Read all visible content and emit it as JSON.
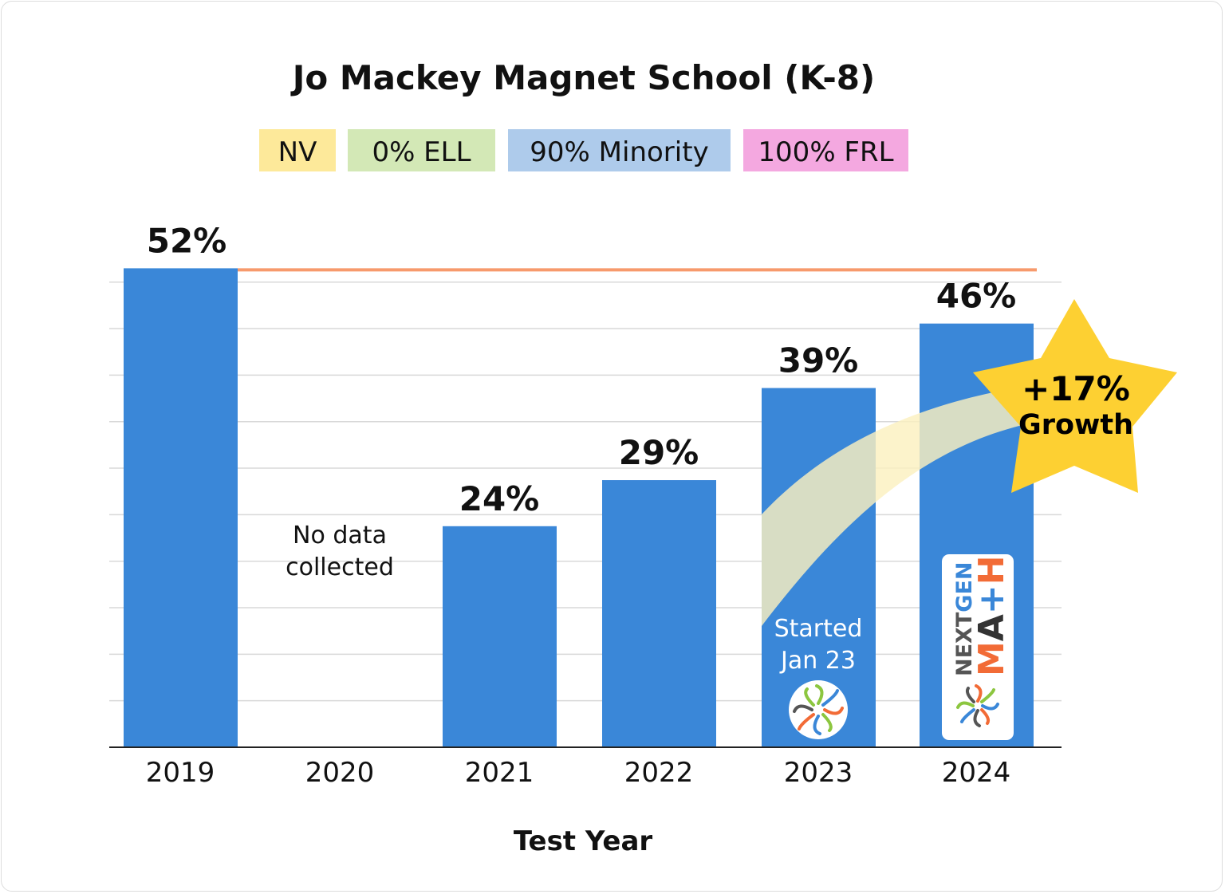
{
  "chart_data": {
    "type": "bar",
    "title": "Jo Mackey Magnet School (K-8)",
    "tags": [
      {
        "label": "NV",
        "color": "#fde99a"
      },
      {
        "label": "0% ELL",
        "color": "#d3e8b6"
      },
      {
        "label": "90% Minority",
        "color": "#aecbeb"
      },
      {
        "label": "100% FRL",
        "color": "#f4a8e0"
      }
    ],
    "xlabel": "Test Year",
    "ylabel": "",
    "categories": [
      "2019",
      "2020",
      "2021",
      "2022",
      "2023",
      "2024"
    ],
    "values": [
      52,
      null,
      24,
      29,
      39,
      46
    ],
    "data_labels": [
      "52%",
      "",
      "24%",
      "29%",
      "39%",
      "46%"
    ],
    "ylim": [
      0,
      55
    ],
    "grid": true,
    "bar_color": "#3a87d8",
    "reference_line": {
      "value": 52,
      "color": "#f79a6c"
    },
    "annotations": {
      "no_data": [
        "No data",
        "collected"
      ],
      "started": [
        "Started",
        "Jan 23"
      ],
      "growth": [
        "+17%",
        "Growth"
      ],
      "growth_color": "#fdd032",
      "logo": "NEXTGEN MATH"
    }
  }
}
